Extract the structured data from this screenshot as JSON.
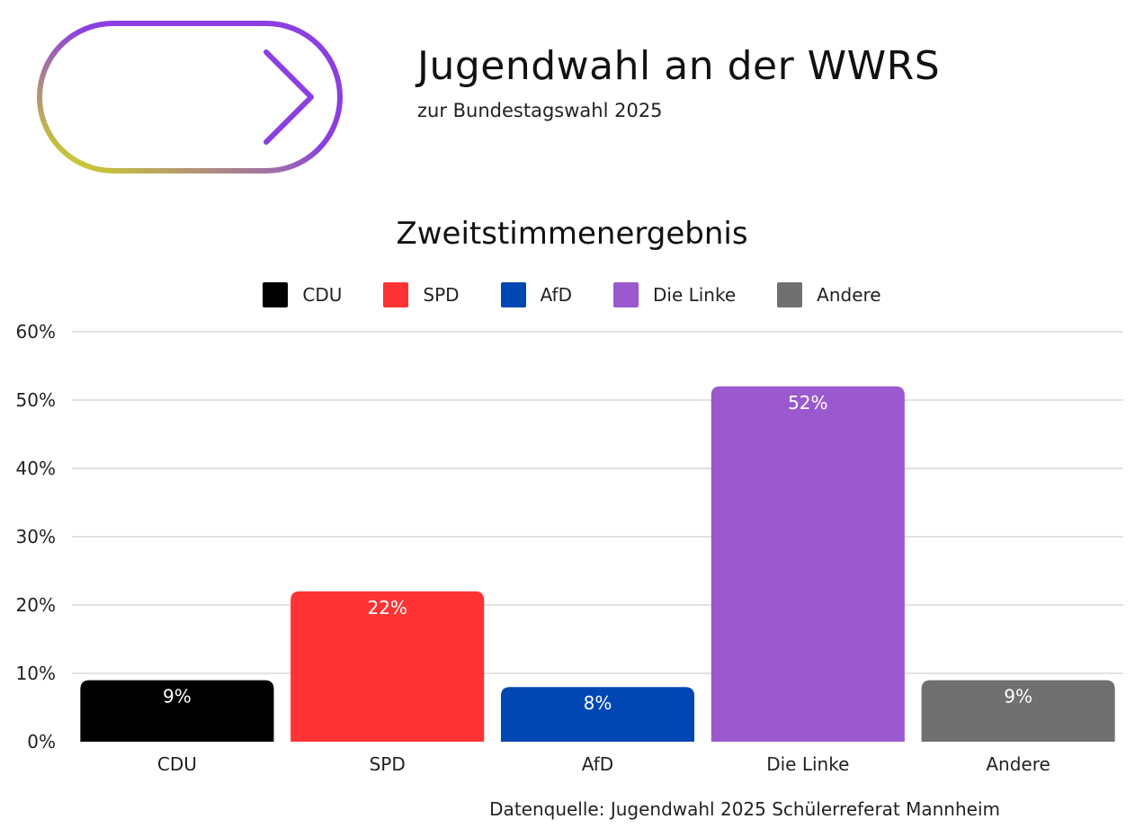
{
  "header": {
    "title": "Jugendwahl an der WWRS",
    "subtitle": "zur Bundestagswahl 2025",
    "logo_icon": "arrow-right-pill-icon"
  },
  "colors": {
    "logo_gradient": [
      "#d4e018",
      "#8b3fe0"
    ],
    "grid": "#d9d9d9",
    "value_label": "#ffffff"
  },
  "chart_data": {
    "type": "bar",
    "title": "Zweitstimmenergebnis",
    "categories": [
      "CDU",
      "SPD",
      "AfD",
      "Die Linke",
      "Andere"
    ],
    "values": [
      9,
      22,
      8,
      52,
      9
    ],
    "value_labels": [
      "9%",
      "22%",
      "8%",
      "52%",
      "9%"
    ],
    "colors": [
      "#000000",
      "#ff3333",
      "#0047b3",
      "#9b59d0",
      "#707070"
    ],
    "legend": [
      "CDU",
      "SPD",
      "AfD",
      "Die Linke",
      "Andere"
    ],
    "legend_position": "top",
    "ylim": [
      0,
      60
    ],
    "yticks": [
      0,
      10,
      20,
      30,
      40,
      50,
      60
    ],
    "ytick_labels": [
      "0%",
      "10%",
      "20%",
      "30%",
      "40%",
      "50%",
      "60%"
    ],
    "xlabel": "",
    "ylabel": "",
    "grid": true
  },
  "footer": {
    "source": "Datenquelle: Jugendwahl 2025 Schülerreferat Mannheim"
  }
}
